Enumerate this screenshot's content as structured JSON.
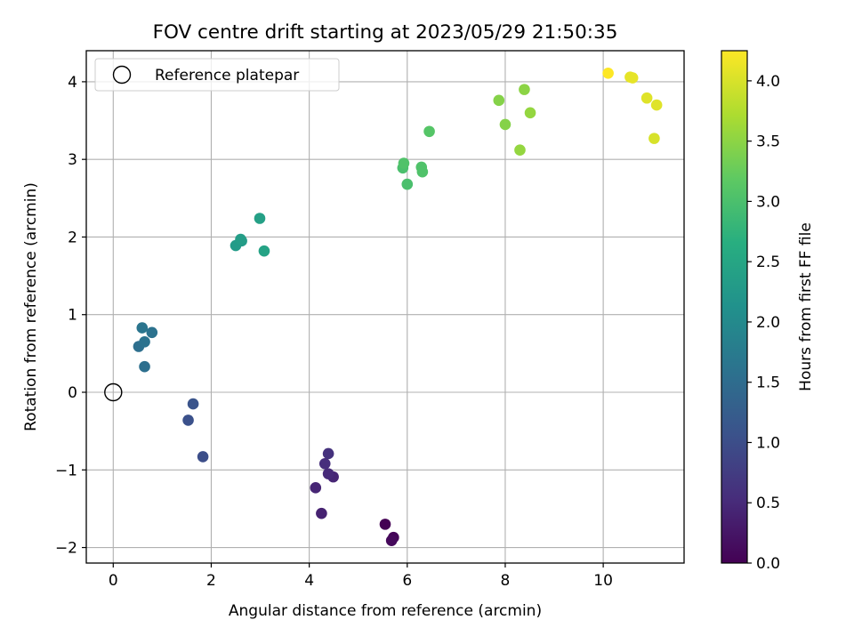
{
  "chart_data": {
    "type": "scatter",
    "title": "FOV centre drift starting at 2023/05/29 21:50:35",
    "xlabel": "Angular distance from reference (arcmin)",
    "ylabel": "Rotation from reference (arcmin)",
    "xlim": [
      -0.55,
      11.65
    ],
    "ylim": [
      -2.2,
      4.4
    ],
    "xticks": [
      0,
      2,
      4,
      6,
      8,
      10
    ],
    "yticks": [
      -2,
      -1,
      0,
      1,
      2,
      3,
      4
    ],
    "grid": true,
    "legend": {
      "placement": "top-left",
      "entries": [
        "Reference platepar"
      ]
    },
    "reference_point": {
      "name": "Reference platepar",
      "x": 0,
      "y": 0
    },
    "colorbar": {
      "label": "Hours from first FF file",
      "range": [
        0,
        4.25
      ],
      "ticks": [
        0.0,
        0.5,
        1.0,
        1.5,
        2.0,
        2.5,
        3.0,
        3.5,
        4.0
      ],
      "colormap": "viridis"
    },
    "points": [
      {
        "x": 5.55,
        "y": -1.7,
        "hours": 0.0
      },
      {
        "x": 5.72,
        "y": -1.87,
        "hours": 0.05
      },
      {
        "x": 5.68,
        "y": -1.91,
        "hours": 0.1
      },
      {
        "x": 4.25,
        "y": -1.56,
        "hours": 0.4
      },
      {
        "x": 4.13,
        "y": -1.23,
        "hours": 0.45
      },
      {
        "x": 4.49,
        "y": -1.09,
        "hours": 0.45
      },
      {
        "x": 4.39,
        "y": -1.05,
        "hours": 0.5
      },
      {
        "x": 4.32,
        "y": -0.92,
        "hours": 0.55
      },
      {
        "x": 4.39,
        "y": -0.79,
        "hours": 0.6
      },
      {
        "x": 1.83,
        "y": -0.83,
        "hours": 1.0
      },
      {
        "x": 1.53,
        "y": -0.36,
        "hours": 1.05
      },
      {
        "x": 1.63,
        "y": -0.15,
        "hours": 1.1
      },
      {
        "x": 0.64,
        "y": 0.33,
        "hours": 1.55
      },
      {
        "x": 0.52,
        "y": 0.59,
        "hours": 1.55
      },
      {
        "x": 0.64,
        "y": 0.65,
        "hours": 1.6
      },
      {
        "x": 0.79,
        "y": 0.77,
        "hours": 1.6
      },
      {
        "x": 0.59,
        "y": 0.83,
        "hours": 1.65
      },
      {
        "x": 2.5,
        "y": 1.89,
        "hours": 2.3
      },
      {
        "x": 2.62,
        "y": 1.95,
        "hours": 2.3
      },
      {
        "x": 2.6,
        "y": 1.97,
        "hours": 2.35
      },
      {
        "x": 2.99,
        "y": 2.24,
        "hours": 2.4
      },
      {
        "x": 3.08,
        "y": 1.82,
        "hours": 2.45
      },
      {
        "x": 6.0,
        "y": 2.68,
        "hours": 3.0
      },
      {
        "x": 5.91,
        "y": 2.89,
        "hours": 3.0
      },
      {
        "x": 5.93,
        "y": 2.95,
        "hours": 3.05
      },
      {
        "x": 6.29,
        "y": 2.9,
        "hours": 3.05
      },
      {
        "x": 6.31,
        "y": 2.84,
        "hours": 3.05
      },
      {
        "x": 6.45,
        "y": 3.36,
        "hours": 3.1
      },
      {
        "x": 7.87,
        "y": 3.76,
        "hours": 3.45
      },
      {
        "x": 8.0,
        "y": 3.45,
        "hours": 3.45
      },
      {
        "x": 8.39,
        "y": 3.9,
        "hours": 3.5
      },
      {
        "x": 8.51,
        "y": 3.6,
        "hours": 3.55
      },
      {
        "x": 8.3,
        "y": 3.12,
        "hours": 3.55
      },
      {
        "x": 10.1,
        "y": 4.11,
        "hours": 4.25
      },
      {
        "x": 10.55,
        "y": 4.06,
        "hours": 4.1
      },
      {
        "x": 10.6,
        "y": 4.05,
        "hours": 4.1
      },
      {
        "x": 10.89,
        "y": 3.79,
        "hours": 4.05
      },
      {
        "x": 11.09,
        "y": 3.7,
        "hours": 4.05
      },
      {
        "x": 11.04,
        "y": 3.27,
        "hours": 4.0
      }
    ]
  }
}
